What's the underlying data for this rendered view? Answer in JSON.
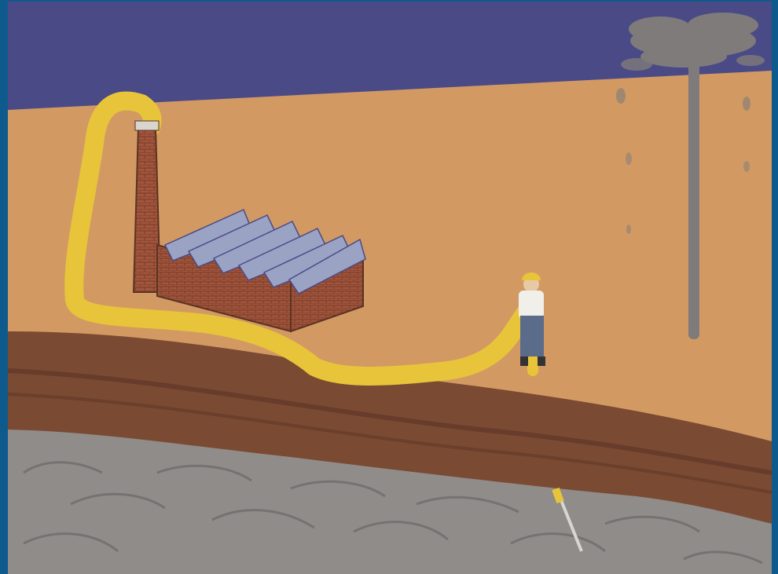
{
  "image": {
    "subject": "illustration",
    "elements": [
      "sky",
      "plain",
      "soil-layer",
      "bedrock",
      "chimney",
      "factory",
      "solar-panels",
      "worker",
      "yellow-pipe",
      "gas-plume",
      "drill-bit"
    ]
  },
  "palette": {
    "border": "#0f5a8c",
    "sky": "#4a4a87",
    "ground": "#d29a62",
    "soil": "#7a4a33",
    "soil_dark": "#5a3324",
    "rock": "#8f8c8a",
    "rock_line": "#6f6c6b",
    "brick": "#a0553c",
    "brick_dark": "#7a3a28",
    "panel": "#9aa3c4",
    "pipe": "#e8c43a",
    "smoke": "#7e7b7a",
    "worker_shirt": "#f1efea",
    "worker_pants": "#5b6b8a",
    "helmet": "#e8c43a"
  }
}
